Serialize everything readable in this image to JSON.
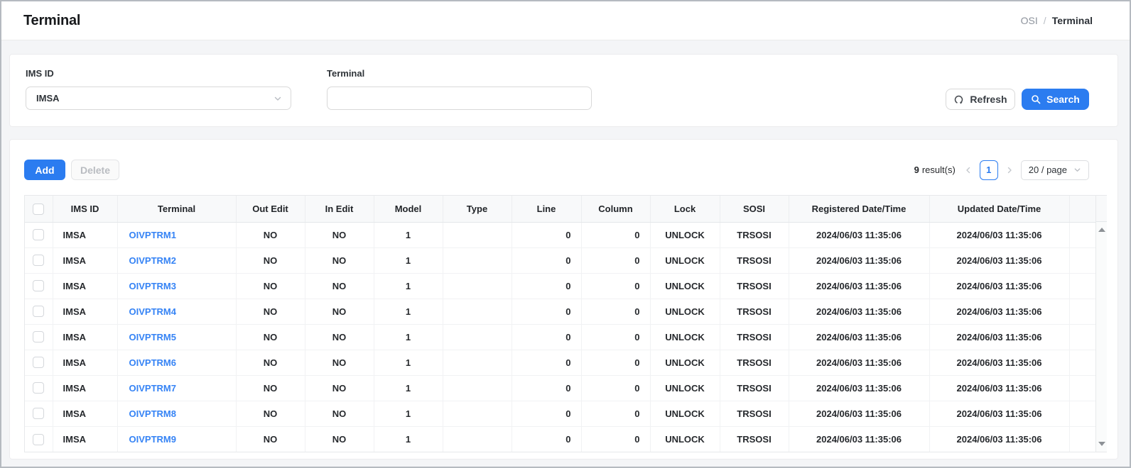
{
  "page_title": "Terminal",
  "breadcrumb": {
    "parent": "OSI",
    "separator": "/",
    "current": "Terminal"
  },
  "filter": {
    "ims_id_label": "IMS ID",
    "ims_id_value": "IMSA",
    "terminal_label": "Terminal",
    "terminal_value": ""
  },
  "buttons": {
    "refresh": "Refresh",
    "search": "Search",
    "add": "Add",
    "delete": "Delete"
  },
  "results": {
    "count": "9",
    "suffix": "result(s)",
    "current_page": "1",
    "page_size": "20 / page"
  },
  "table": {
    "columns": [
      "IMS ID",
      "Terminal",
      "Out Edit",
      "In Edit",
      "Model",
      "Type",
      "Line",
      "Column",
      "Lock",
      "SOSI",
      "Registered Date/Time",
      "Updated Date/Time"
    ],
    "rows": [
      {
        "ims_id": "IMSA",
        "terminal": "OIVPTRM1",
        "out_edit": "NO",
        "in_edit": "NO",
        "model": "1",
        "type": "",
        "line": "0",
        "column": "0",
        "lock": "UNLOCK",
        "sosi": "TRSOSI",
        "registered": "2024/06/03 11:35:06",
        "updated": "2024/06/03 11:35:06"
      },
      {
        "ims_id": "IMSA",
        "terminal": "OIVPTRM2",
        "out_edit": "NO",
        "in_edit": "NO",
        "model": "1",
        "type": "",
        "line": "0",
        "column": "0",
        "lock": "UNLOCK",
        "sosi": "TRSOSI",
        "registered": "2024/06/03 11:35:06",
        "updated": "2024/06/03 11:35:06"
      },
      {
        "ims_id": "IMSA",
        "terminal": "OIVPTRM3",
        "out_edit": "NO",
        "in_edit": "NO",
        "model": "1",
        "type": "",
        "line": "0",
        "column": "0",
        "lock": "UNLOCK",
        "sosi": "TRSOSI",
        "registered": "2024/06/03 11:35:06",
        "updated": "2024/06/03 11:35:06"
      },
      {
        "ims_id": "IMSA",
        "terminal": "OIVPTRM4",
        "out_edit": "NO",
        "in_edit": "NO",
        "model": "1",
        "type": "",
        "line": "0",
        "column": "0",
        "lock": "UNLOCK",
        "sosi": "TRSOSI",
        "registered": "2024/06/03 11:35:06",
        "updated": "2024/06/03 11:35:06"
      },
      {
        "ims_id": "IMSA",
        "terminal": "OIVPTRM5",
        "out_edit": "NO",
        "in_edit": "NO",
        "model": "1",
        "type": "",
        "line": "0",
        "column": "0",
        "lock": "UNLOCK",
        "sosi": "TRSOSI",
        "registered": "2024/06/03 11:35:06",
        "updated": "2024/06/03 11:35:06"
      },
      {
        "ims_id": "IMSA",
        "terminal": "OIVPTRM6",
        "out_edit": "NO",
        "in_edit": "NO",
        "model": "1",
        "type": "",
        "line": "0",
        "column": "0",
        "lock": "UNLOCK",
        "sosi": "TRSOSI",
        "registered": "2024/06/03 11:35:06",
        "updated": "2024/06/03 11:35:06"
      },
      {
        "ims_id": "IMSA",
        "terminal": "OIVPTRM7",
        "out_edit": "NO",
        "in_edit": "NO",
        "model": "1",
        "type": "",
        "line": "0",
        "column": "0",
        "lock": "UNLOCK",
        "sosi": "TRSOSI",
        "registered": "2024/06/03 11:35:06",
        "updated": "2024/06/03 11:35:06"
      },
      {
        "ims_id": "IMSA",
        "terminal": "OIVPTRM8",
        "out_edit": "NO",
        "in_edit": "NO",
        "model": "1",
        "type": "",
        "line": "0",
        "column": "0",
        "lock": "UNLOCK",
        "sosi": "TRSOSI",
        "registered": "2024/06/03 11:35:06",
        "updated": "2024/06/03 11:35:06"
      },
      {
        "ims_id": "IMSA",
        "terminal": "OIVPTRM9",
        "out_edit": "NO",
        "in_edit": "NO",
        "model": "1",
        "type": "",
        "line": "0",
        "column": "0",
        "lock": "UNLOCK",
        "sosi": "TRSOSI",
        "registered": "2024/06/03 11:35:06",
        "updated": "2024/06/03 11:35:06"
      }
    ]
  },
  "colors": {
    "accent": "#2b7cf0",
    "link": "#3583f5",
    "content_bg": "#f4f5f7"
  }
}
